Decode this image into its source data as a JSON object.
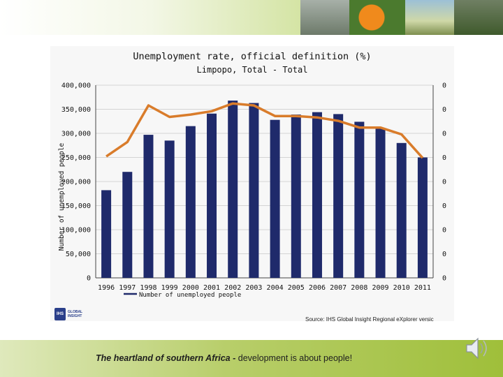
{
  "slide": {
    "footer_emphasis": "The heartland of southern Africa -",
    "footer_rest": " development is about people!",
    "source": "Source: IHS Global Insight Regional eXplorer versic",
    "logo_mark": "IHS",
    "logo_text": "GLOBAL INSIGHT",
    "audio_icon": "speaker-icon"
  },
  "chart_data": {
    "type": "bar",
    "title": "Unemployment rate, official definition (%)",
    "subtitle": "Limpopo, Total - Total",
    "ylabel": "Number of unemployed people",
    "legend": "Number of unemployed people",
    "legend_position": "bottom-left",
    "categories": [
      "1996",
      "1997",
      "1998",
      "1999",
      "2000",
      "2001",
      "2002",
      "2003",
      "2004",
      "2005",
      "2006",
      "2007",
      "2008",
      "2009",
      "2010",
      "2011"
    ],
    "series": [
      {
        "name": "Number of unemployed people",
        "kind": "bar",
        "color": "#1f2a6b",
        "values": [
          182000,
          220000,
          297000,
          285000,
          315000,
          341000,
          368000,
          363000,
          328000,
          339000,
          344000,
          340000,
          324000,
          311000,
          280000,
          250000
        ]
      },
      {
        "kind": "line",
        "axis": "right",
        "color": "#d97c2b",
        "values": [
          25.2,
          28.2,
          35.8,
          33.4,
          33.9,
          34.6,
          36.2,
          35.8,
          33.6,
          33.6,
          33.3,
          32.6,
          31.2,
          31.2,
          29.8,
          24.9
        ]
      }
    ],
    "y_ticks": [
      "0",
      "50,000",
      "100,000",
      "150,000",
      "200,000",
      "250,000",
      "300,000",
      "350,000",
      "400,000"
    ],
    "y_right_ticks": [
      "0",
      "0",
      "0",
      "0",
      "0",
      "0",
      "0",
      "0",
      "0"
    ],
    "ylim": [
      0,
      400000
    ],
    "y2lim": [
      0,
      40
    ],
    "grid": true
  }
}
